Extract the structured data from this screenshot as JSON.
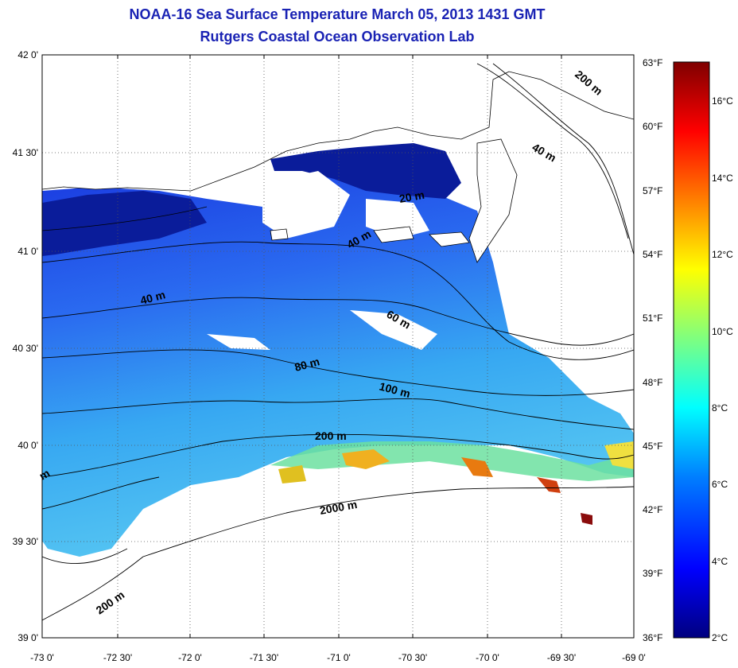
{
  "header": {
    "title": "NOAA-16 Sea Surface Temperature March 05, 2013 1431 GMT",
    "subtitle": "Rutgers Coastal Ocean Observation Lab"
  },
  "map": {
    "lat_labels": [
      "42 0'",
      "41 30'",
      "41 0'",
      "40 30'",
      "40 0'",
      "39 30'",
      "39 0'"
    ],
    "lon_labels": [
      "-73 0'",
      "-72 30'",
      "-72 0'",
      "-71 30'",
      "-71 0'",
      "-70 30'",
      "-70 0'",
      "-69 30'",
      "-69 0'"
    ],
    "lat_range": [
      39.0,
      42.0
    ],
    "lon_range": [
      -73.0,
      -69.0
    ],
    "isobath_labels": [
      "200 m",
      "40 m",
      "20 m",
      "40 m",
      "40 m",
      "60 m",
      "80 m",
      "100 m",
      "200 m",
      "2000 m",
      "200 m",
      "m"
    ]
  },
  "colorbar": {
    "fahrenheit_labels": [
      "63°F",
      "60°F",
      "57°F",
      "54°F",
      "51°F",
      "48°F",
      "45°F",
      "42°F",
      "39°F",
      "36°F"
    ],
    "celsius_labels": [
      "16°C",
      "14°C",
      "12°C",
      "10°C",
      "8°C",
      "6°C",
      "4°C",
      "2°C"
    ],
    "range_celsius": [
      2,
      17
    ],
    "colors": [
      "#00007f",
      "#0000ff",
      "#007fff",
      "#00ffff",
      "#7fff7f",
      "#ffff00",
      "#ff7f00",
      "#ff0000",
      "#7f0000"
    ]
  }
}
